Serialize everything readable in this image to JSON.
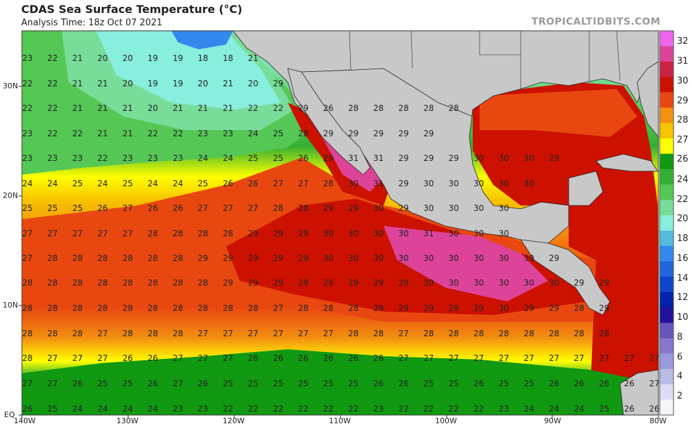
{
  "header": {
    "title": "CDAS Sea Surface Temperature (°C)",
    "analysis_time": "Analysis Time: 18z Oct 07 2021",
    "credit": "TROPICALTIDBITS.COM"
  },
  "axes": {
    "lon_labels": [
      "140W",
      "130W",
      "120W",
      "110W",
      "100W",
      "90W",
      "80W"
    ],
    "lat_labels": [
      "30N",
      "20N",
      "10N",
      "EQ"
    ]
  },
  "colorbar": {
    "labels": [
      "32",
      "31",
      "30",
      "29",
      "28",
      "27",
      "26",
      "24",
      "22",
      "20",
      "18",
      "16",
      "14",
      "12",
      "10",
      "8",
      "6",
      "4",
      "2"
    ],
    "colors": [
      "#ee66ee",
      "#dd4499",
      "#cc2244",
      "#cc1100",
      "#e84810",
      "#f39010",
      "#f7c400",
      "#ffff00",
      "#119911",
      "#33b033",
      "#55c755",
      "#77dd99",
      "#88eedd",
      "#55bbdd",
      "#3388ee",
      "#2266dd",
      "#1144cc",
      "#0022aa",
      "#221199",
      "#6655bb",
      "#8877cc",
      "#9999dd",
      "#bbbbe8",
      "#ddddf2",
      "#f4f4fa"
    ]
  },
  "map_data": {
    "land_color": "#c8c8c8",
    "rows": [
      {
        "lat": "33N",
        "values": [
          "23",
          "22",
          "21",
          "20",
          "20",
          "19",
          "19",
          "18",
          "18",
          "21"
        ]
      },
      {
        "lat": "31N",
        "values": [
          "22",
          "22",
          "21",
          "21",
          "20",
          "19",
          "19",
          "20",
          "21",
          "20",
          "29"
        ]
      },
      {
        "lat": "29N",
        "values": [
          "22",
          "22",
          "21",
          "21",
          "21",
          "20",
          "21",
          "21",
          "21",
          "22",
          "22",
          "29",
          "26",
          "28",
          "28",
          "28",
          "28",
          "28"
        ]
      },
      {
        "lat": "27N",
        "values": [
          "23",
          "22",
          "22",
          "21",
          "21",
          "22",
          "22",
          "23",
          "23",
          "24",
          "25",
          "28",
          "29",
          "29",
          "29",
          "29",
          "29"
        ]
      },
      {
        "lat": "25N",
        "values": [
          "23",
          "23",
          "23",
          "22",
          "23",
          "23",
          "23",
          "24",
          "24",
          "25",
          "25",
          "26",
          "29",
          "31",
          "31",
          "29",
          "29",
          "29",
          "30",
          "30",
          "30",
          "29"
        ]
      },
      {
        "lat": "23N",
        "values": [
          "24",
          "24",
          "25",
          "24",
          "25",
          "24",
          "24",
          "25",
          "26",
          "26",
          "27",
          "27",
          "28",
          "30",
          "31",
          "29",
          "30",
          "30",
          "30",
          "30",
          "30"
        ]
      },
      {
        "lat": "21N",
        "values": [
          "25",
          "25",
          "25",
          "26",
          "27",
          "26",
          "26",
          "27",
          "27",
          "27",
          "28",
          "28",
          "29",
          "29",
          "30",
          "29",
          "30",
          "30",
          "30",
          "30"
        ]
      },
      {
        "lat": "19N",
        "values": [
          "27",
          "27",
          "27",
          "27",
          "27",
          "28",
          "28",
          "28",
          "28",
          "29",
          "29",
          "29",
          "30",
          "30",
          "30",
          "30",
          "31",
          "30",
          "30",
          "30"
        ]
      },
      {
        "lat": "17N",
        "values": [
          "27",
          "28",
          "28",
          "28",
          "28",
          "28",
          "28",
          "29",
          "29",
          "29",
          "29",
          "29",
          "30",
          "30",
          "30",
          "30",
          "30",
          "30",
          "30",
          "30",
          "30",
          "29"
        ]
      },
      {
        "lat": "15N",
        "values": [
          "28",
          "28",
          "28",
          "28",
          "28",
          "28",
          "28",
          "28",
          "29",
          "29",
          "29",
          "29",
          "29",
          "29",
          "29",
          "29",
          "30",
          "30",
          "30",
          "30",
          "30",
          "30",
          "29",
          "29"
        ]
      },
      {
        "lat": "13N",
        "values": [
          "28",
          "28",
          "28",
          "28",
          "28",
          "28",
          "28",
          "28",
          "28",
          "28",
          "27",
          "28",
          "28",
          "28",
          "29",
          "29",
          "29",
          "29",
          "29",
          "30",
          "29",
          "29",
          "28",
          "29"
        ]
      },
      {
        "lat": "11N",
        "values": [
          "28",
          "28",
          "28",
          "27",
          "28",
          "28",
          "28",
          "27",
          "27",
          "27",
          "27",
          "27",
          "27",
          "28",
          "28",
          "27",
          "28",
          "28",
          "28",
          "28",
          "28",
          "28",
          "28",
          "28"
        ]
      },
      {
        "lat": "9N",
        "values": [
          "28",
          "27",
          "27",
          "27",
          "26",
          "26",
          "27",
          "27",
          "27",
          "26",
          "26",
          "26",
          "26",
          "26",
          "26",
          "27",
          "27",
          "27",
          "27",
          "27",
          "27",
          "27",
          "27",
          "27",
          "27",
          "27"
        ]
      },
      {
        "lat": "7N",
        "values": [
          "27",
          "27",
          "26",
          "25",
          "25",
          "26",
          "27",
          "26",
          "25",
          "25",
          "25",
          "25",
          "25",
          "25",
          "26",
          "26",
          "25",
          "25",
          "26",
          "25",
          "25",
          "26",
          "26",
          "26",
          "26",
          "27"
        ]
      },
      {
        "lat": "EQ",
        "values": [
          "26",
          "25",
          "24",
          "24",
          "24",
          "24",
          "23",
          "23",
          "22",
          "22",
          "22",
          "22",
          "22",
          "22",
          "23",
          "22",
          "22",
          "22",
          "22",
          "23",
          "24",
          "24",
          "24",
          "25",
          "26",
          "26"
        ]
      }
    ]
  }
}
